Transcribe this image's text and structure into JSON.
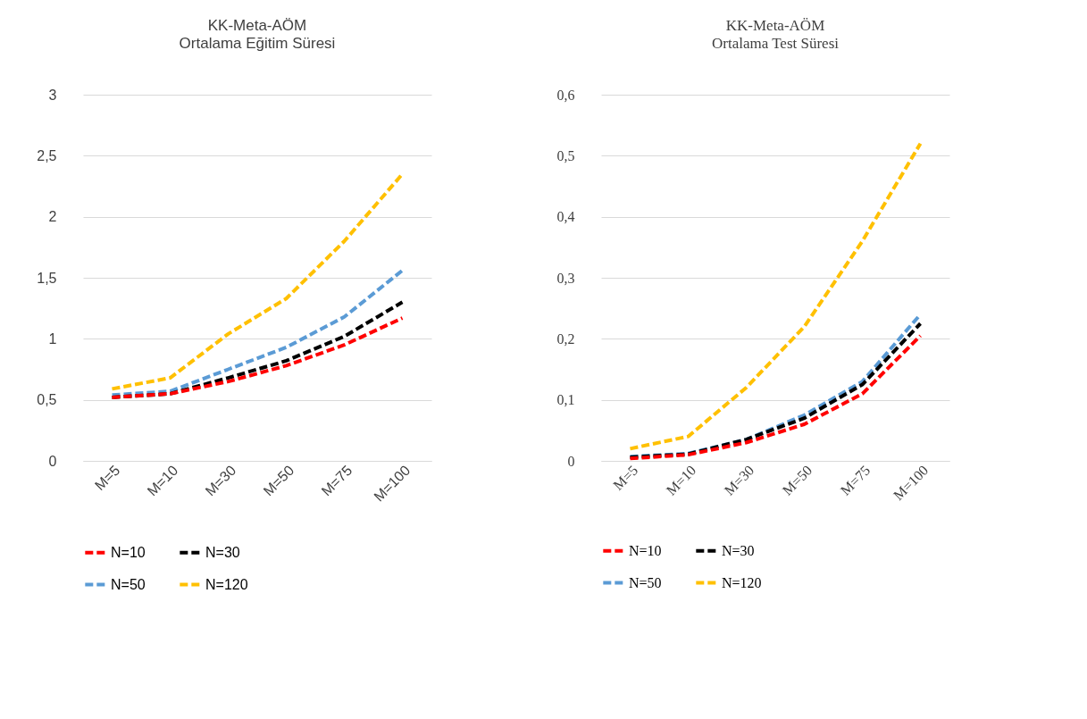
{
  "chart_data": [
    {
      "type": "line",
      "title": "KK-Meta-AÖM",
      "subtitle": "Ortalama Eğitim Süresi",
      "categories": [
        "M=5",
        "M=10",
        "M=30",
        "M=50",
        "M=75",
        "M=100"
      ],
      "ylim": [
        0,
        3
      ],
      "yticks": [
        0,
        {
          "value": 0.5,
          "label": "0,5"
        },
        1,
        {
          "value": 1.5,
          "label": "1,5"
        },
        2,
        {
          "value": 2.5,
          "label": "2,5"
        },
        3
      ],
      "grid": "y",
      "legend": "bottom",
      "series": [
        {
          "name": "N=10",
          "color": "#ff0000",
          "line_style": "dashed",
          "values": [
            0.52,
            0.55,
            0.65,
            0.78,
            0.95,
            1.17
          ]
        },
        {
          "name": "N=30",
          "color": "#000000",
          "line_style": "dashed",
          "values": [
            0.52,
            0.55,
            0.68,
            0.82,
            1.02,
            1.3
          ]
        },
        {
          "name": "N=50",
          "color": "#5b9bd5",
          "line_style": "dashed",
          "values": [
            0.54,
            0.57,
            0.75,
            0.93,
            1.18,
            1.56
          ]
        },
        {
          "name": "N=120",
          "color": "#ffc000",
          "line_style": "dashed",
          "values": [
            0.59,
            0.68,
            1.04,
            1.33,
            1.8,
            2.35
          ]
        }
      ]
    },
    {
      "type": "line",
      "title": "KK-Meta-AÖM",
      "subtitle": "Ortalama Test Süresi",
      "categories": [
        "M=5",
        "M=10",
        "M=30",
        "M=50",
        "M=75",
        "M=100"
      ],
      "ylim": [
        0,
        0.6
      ],
      "yticks": [
        0,
        {
          "value": 0.1,
          "label": "0,1"
        },
        {
          "value": 0.2,
          "label": "0,2"
        },
        {
          "value": 0.3,
          "label": "0,3"
        },
        {
          "value": 0.4,
          "label": "0,4"
        },
        {
          "value": 0.5,
          "label": "0,5"
        },
        {
          "value": 0.6,
          "label": "0,6"
        }
      ],
      "grid": "y",
      "legend": "bottom",
      "series": [
        {
          "name": "N=10",
          "color": "#ff0000",
          "line_style": "dashed",
          "values": [
            0.004,
            0.01,
            0.03,
            0.06,
            0.11,
            0.205
          ]
        },
        {
          "name": "N=30",
          "color": "#000000",
          "line_style": "dashed",
          "values": [
            0.006,
            0.011,
            0.035,
            0.07,
            0.125,
            0.225
          ]
        },
        {
          "name": "N=50",
          "color": "#5b9bd5",
          "line_style": "dashed",
          "values": [
            0.007,
            0.012,
            0.035,
            0.075,
            0.13,
            0.24
          ]
        },
        {
          "name": "N=120",
          "color": "#ffc000",
          "line_style": "dashed",
          "values": [
            0.02,
            0.04,
            0.12,
            0.22,
            0.36,
            0.52
          ]
        }
      ]
    }
  ]
}
